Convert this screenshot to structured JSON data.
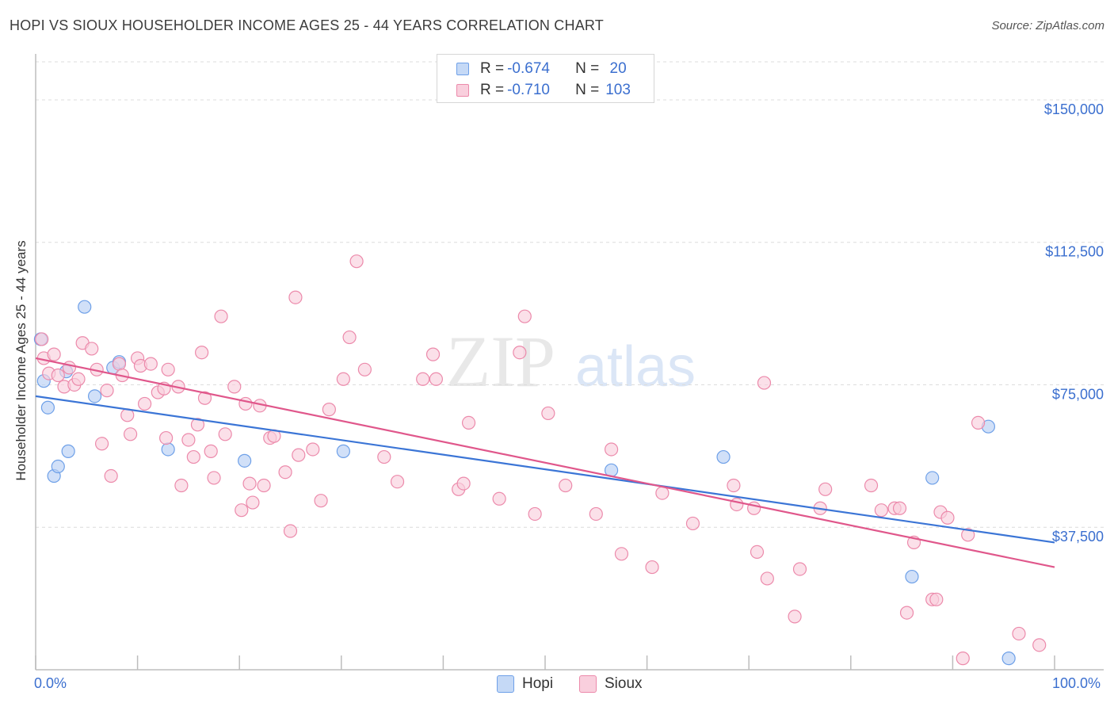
{
  "header": {
    "title": "HOPI VS SIOUX HOUSEHOLDER INCOME AGES 25 - 44 YEARS CORRELATION CHART",
    "source": "Source: ZipAtlas.com"
  },
  "watermark": {
    "zip": "ZIP",
    "atlas": "atlas"
  },
  "legend": {
    "rows": [
      {
        "r_label": "R = ",
        "r_value": "-0.674",
        "n_label": "N = ",
        "n_value": " 20",
        "color": "#6ea0e8",
        "fill": "#c5d9f6"
      },
      {
        "r_label": "R = ",
        "r_value": "-0.710",
        "n_label": "N = ",
        "n_value": "103",
        "color": "#ec8aab",
        "fill": "#f9cfdd"
      }
    ]
  },
  "bottom_legend": {
    "hopi": {
      "label": "Hopi",
      "color": "#6ea0e8",
      "fill": "#c5d9f6"
    },
    "sioux": {
      "label": "Sioux",
      "color": "#ec8aab",
      "fill": "#f9cfdd"
    }
  },
  "axis": {
    "x_min_label": "0.0%",
    "x_max_label": "100.0%"
  },
  "chart_data": {
    "type": "scatter",
    "title": "HOPI VS SIOUX HOUSEHOLDER INCOME AGES 25 - 44 YEARS CORRELATION CHART",
    "xlabel": "",
    "ylabel": "Householder Income Ages 25 - 44 years",
    "xlim": [
      0,
      100
    ],
    "ylim": [
      0,
      160000
    ],
    "y_ticks": [
      {
        "value": 150000,
        "label": "$150,000"
      },
      {
        "value": 112500,
        "label": "$112,500"
      },
      {
        "value": 75000,
        "label": "$75,000"
      },
      {
        "value": 37500,
        "label": "$37,500"
      }
    ],
    "series": [
      {
        "name": "Hopi",
        "color": "#3b75d6",
        "fill": "#b8d0f4",
        "stroke": "#6ea0e8",
        "trend": {
          "x": [
            0,
            100
          ],
          "y": [
            72000,
            33500
          ]
        },
        "points": [
          [
            0.5,
            87000
          ],
          [
            0.8,
            76000
          ],
          [
            1.2,
            69000
          ],
          [
            1.8,
            51000
          ],
          [
            2.2,
            53500
          ],
          [
            3.2,
            57500
          ],
          [
            3.0,
            78500
          ],
          [
            4.8,
            95500
          ],
          [
            5.8,
            72000
          ],
          [
            7.6,
            79500
          ],
          [
            8.2,
            81000
          ],
          [
            13,
            58000
          ],
          [
            20.5,
            55000
          ],
          [
            30.2,
            57500
          ],
          [
            56.5,
            52500
          ],
          [
            67.5,
            56000
          ],
          [
            86,
            24500
          ],
          [
            88,
            50500
          ],
          [
            93.5,
            64000
          ],
          [
            95.5,
            3000
          ]
        ]
      },
      {
        "name": "Sioux",
        "color": "#e0578b",
        "fill": "#f9cfdd",
        "stroke": "#ec8aab",
        "trend": {
          "x": [
            0,
            100
          ],
          "y": [
            82000,
            27000
          ]
        },
        "points": [
          [
            0.6,
            87000
          ],
          [
            0.8,
            82000
          ],
          [
            1.3,
            78000
          ],
          [
            1.8,
            83000
          ],
          [
            2.2,
            77500
          ],
          [
            2.8,
            74500
          ],
          [
            3.3,
            79500
          ],
          [
            3.8,
            75000
          ],
          [
            4.2,
            76500
          ],
          [
            4.6,
            86000
          ],
          [
            5.5,
            84500
          ],
          [
            6.0,
            79000
          ],
          [
            6.5,
            59500
          ],
          [
            7.0,
            73500
          ],
          [
            7.4,
            51000
          ],
          [
            8.2,
            80500
          ],
          [
            8.5,
            77500
          ],
          [
            9.0,
            67000
          ],
          [
            9.3,
            62000
          ],
          [
            10.0,
            82000
          ],
          [
            10.3,
            80000
          ],
          [
            10.7,
            70000
          ],
          [
            11.3,
            80500
          ],
          [
            12.0,
            73000
          ],
          [
            12.6,
            74000
          ],
          [
            12.8,
            61000
          ],
          [
            13.0,
            79000
          ],
          [
            14.0,
            74500
          ],
          [
            14.3,
            48500
          ],
          [
            15.0,
            60500
          ],
          [
            15.5,
            56000
          ],
          [
            15.9,
            64500
          ],
          [
            16.3,
            83500
          ],
          [
            16.6,
            71500
          ],
          [
            17.2,
            57500
          ],
          [
            17.5,
            50500
          ],
          [
            18.2,
            93000
          ],
          [
            18.6,
            62000
          ],
          [
            19.5,
            74500
          ],
          [
            20.2,
            42000
          ],
          [
            20.6,
            70000
          ],
          [
            21.0,
            49000
          ],
          [
            21.3,
            44000
          ],
          [
            22.0,
            69500
          ],
          [
            22.4,
            48500
          ],
          [
            23.0,
            61000
          ],
          [
            23.4,
            61500
          ],
          [
            24.5,
            52000
          ],
          [
            25.0,
            36500
          ],
          [
            25.5,
            98000
          ],
          [
            25.8,
            56500
          ],
          [
            27.2,
            58000
          ],
          [
            28.0,
            44500
          ],
          [
            28.8,
            68500
          ],
          [
            30.2,
            76500
          ],
          [
            30.8,
            87500
          ],
          [
            31.5,
            107500
          ],
          [
            32.3,
            79000
          ],
          [
            34.2,
            56000
          ],
          [
            35.5,
            49500
          ],
          [
            38.0,
            76500
          ],
          [
            39.0,
            83000
          ],
          [
            39.3,
            76500
          ],
          [
            41.5,
            47500
          ],
          [
            42.0,
            49000
          ],
          [
            42.5,
            65000
          ],
          [
            45.5,
            45000
          ],
          [
            47.5,
            83500
          ],
          [
            48.0,
            93000
          ],
          [
            49.0,
            41000
          ],
          [
            50.3,
            67500
          ],
          [
            52.0,
            48500
          ],
          [
            55.0,
            41000
          ],
          [
            56.5,
            58000
          ],
          [
            57.5,
            30500
          ],
          [
            60.5,
            27000
          ],
          [
            61.5,
            46500
          ],
          [
            64.5,
            38500
          ],
          [
            68.5,
            48500
          ],
          [
            68.8,
            43500
          ],
          [
            70.5,
            42500
          ],
          [
            70.8,
            31000
          ],
          [
            71.5,
            75500
          ],
          [
            71.8,
            24000
          ],
          [
            74.5,
            14000
          ],
          [
            75.0,
            26500
          ],
          [
            77.0,
            42500
          ],
          [
            77.5,
            47500
          ],
          [
            82.0,
            48500
          ],
          [
            83.0,
            42000
          ],
          [
            84.3,
            42500
          ],
          [
            84.8,
            42500
          ],
          [
            85.5,
            15000
          ],
          [
            86.2,
            33500
          ],
          [
            88.0,
            18500
          ],
          [
            88.4,
            18500
          ],
          [
            88.8,
            41500
          ],
          [
            89.5,
            40000
          ],
          [
            91.0,
            3000
          ],
          [
            91.5,
            35500
          ],
          [
            92.5,
            65000
          ],
          [
            96.5,
            9500
          ],
          [
            98.5,
            6500
          ]
        ]
      }
    ]
  }
}
